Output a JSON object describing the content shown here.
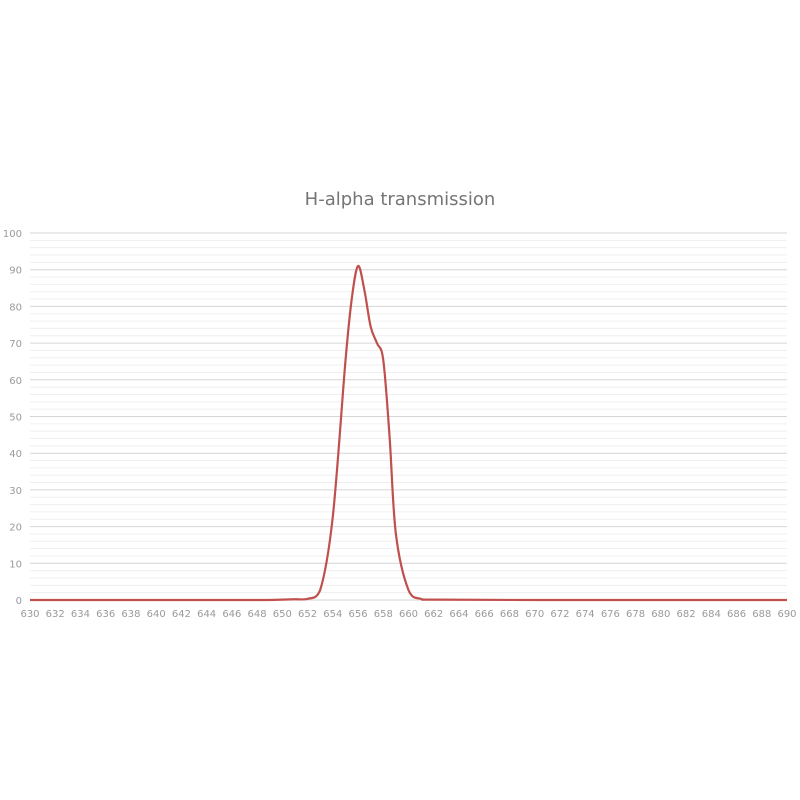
{
  "chart_data": {
    "type": "line",
    "title": "H-alpha transmission",
    "xlabel": "",
    "ylabel": "",
    "xlim": [
      630,
      690
    ],
    "ylim": [
      0,
      100
    ],
    "x_ticks": [
      630,
      632,
      634,
      636,
      638,
      640,
      642,
      644,
      646,
      648,
      650,
      652,
      654,
      656,
      658,
      660,
      662,
      664,
      666,
      668,
      670,
      672,
      674,
      676,
      678,
      680,
      682,
      684,
      686,
      688,
      690
    ],
    "y_ticks": [
      0,
      10,
      20,
      30,
      40,
      50,
      60,
      70,
      80,
      90,
      100
    ],
    "grid": {
      "major_y": true,
      "minor_y_step": 2
    },
    "series": [
      {
        "color": "#c0504d",
        "x": [
          630,
          640,
          648,
          650,
          651,
          652,
          653,
          654,
          655,
          655.5,
          656,
          656.5,
          657,
          657.5,
          658,
          658.5,
          659,
          660,
          661,
          662,
          670,
          680,
          690
        ],
        "y": [
          0,
          0,
          0,
          0.1,
          0.2,
          0.3,
          2.7,
          22.7,
          65,
          82,
          91,
          84.5,
          74.5,
          70,
          65.4,
          44.5,
          18,
          2.7,
          0.3,
          0.1,
          0,
          0,
          0
        ]
      }
    ]
  }
}
